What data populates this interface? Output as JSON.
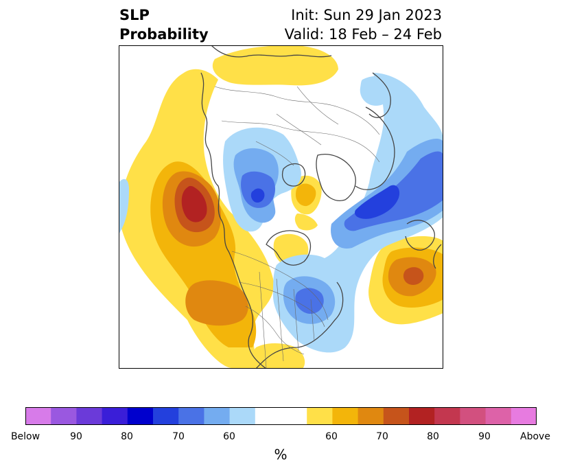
{
  "title": {
    "left_line1": "SLP",
    "left_line2": "Probability",
    "right_line1": "Init: Sun 29 Jan 2023",
    "right_line2": "Valid: 18 Feb – 24 Feb"
  },
  "colorbar": {
    "unit": "%",
    "ticks": [
      "Below",
      "90",
      "80",
      "70",
      "60",
      "60",
      "70",
      "80",
      "90",
      "Above"
    ],
    "colors": [
      "#d77be9",
      "#9a58e0",
      "#6b3ad9",
      "#3a1ed8",
      "#0000cd",
      "#2340dd",
      "#4a72e6",
      "#74acf0",
      "#abd9f9",
      "#ffffff",
      "#ffe048",
      "#f3b50a",
      "#e08810",
      "#c6541b",
      "#b22222",
      "#c3374f",
      "#d2507f",
      "#dd62a8",
      "#e77be0"
    ]
  },
  "map_colors": {
    "above_60": "#ffe048",
    "above_65": "#f3b50a",
    "above_70": "#e08810",
    "above_75": "#c6541b",
    "above_80": "#b22222",
    "below_60": "#abd9f9",
    "below_65": "#74acf0",
    "below_70": "#4a72e6",
    "below_75": "#2340dd",
    "land_lines": "#444444"
  }
}
